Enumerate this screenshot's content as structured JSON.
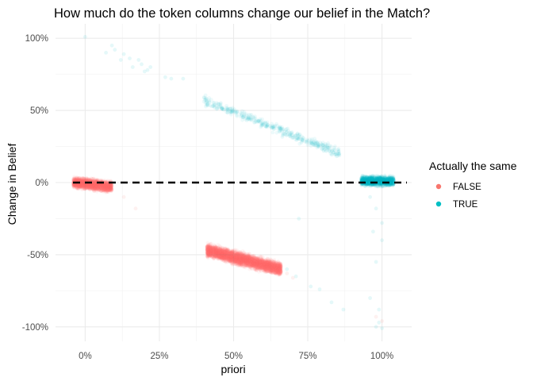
{
  "chart_data": {
    "type": "scatter",
    "title": "How much do the token columns change our belief in the Match?",
    "xlabel": "priori",
    "ylabel": "Change in Belief",
    "xlim": [
      -0.1,
      1.1
    ],
    "ylim": [
      -1.1,
      1.1
    ],
    "x_ticks": [
      0,
      0.25,
      0.5,
      0.75,
      1.0
    ],
    "x_tick_labels": [
      "0%",
      "25%",
      "50%",
      "75%",
      "100%"
    ],
    "y_ticks": [
      -1.0,
      -0.5,
      0,
      0.5,
      1.0
    ],
    "y_tick_labels": [
      "-100%",
      "-50%",
      "0%",
      "50%",
      "100%"
    ],
    "grid": true,
    "reference_line": {
      "y": 0,
      "style": "dashed",
      "color": "#000000"
    },
    "legend": {
      "title": "Actually the same",
      "position": "right",
      "entries": [
        {
          "label": "FALSE",
          "color": "#F8766D"
        },
        {
          "label": "TRUE",
          "color": "#00BFC4"
        }
      ]
    },
    "series": [
      {
        "name": "FALSE",
        "color": "#F8766D",
        "clusters": [
          {
            "x_range": [
              -0.04,
              0.09
            ],
            "y_at_start": 0.0,
            "y_at_end": -0.03,
            "y_spread": 0.05,
            "n": 2200
          },
          {
            "x_range": [
              0.41,
              0.66
            ],
            "y_at_start": -0.47,
            "y_at_end": -0.6,
            "y_spread": 0.06,
            "n": 4500
          }
        ],
        "outliers": [
          [
            0.17,
            -0.18
          ],
          [
            0.13,
            -0.1
          ],
          [
            0.68,
            -0.63
          ],
          [
            0.7,
            -0.66
          ],
          [
            0.98,
            -0.93
          ],
          [
            1.0,
            -0.96
          ]
        ]
      },
      {
        "name": "TRUE",
        "color": "#00BFC4",
        "clusters": [
          {
            "x_range": [
              0.93,
              1.04
            ],
            "y_at_start": 0.01,
            "y_at_end": 0.01,
            "y_spread": 0.045,
            "n": 1500
          },
          {
            "x_range": [
              0.4,
              0.86
            ],
            "y_at_start": 0.57,
            "y_at_end": 0.2,
            "y_spread": 0.045,
            "n": 380
          }
        ],
        "outliers": [
          [
            0.0,
            1.01
          ],
          [
            0.09,
            0.95
          ],
          [
            0.1,
            0.92
          ],
          [
            0.07,
            0.9
          ],
          [
            0.13,
            0.89
          ],
          [
            0.12,
            0.85
          ],
          [
            0.15,
            0.86
          ],
          [
            0.18,
            0.85
          ],
          [
            0.16,
            0.8
          ],
          [
            0.19,
            0.82
          ],
          [
            0.2,
            0.77
          ],
          [
            0.21,
            0.78
          ],
          [
            0.22,
            0.8
          ],
          [
            0.27,
            0.73
          ],
          [
            0.29,
            0.72
          ],
          [
            0.33,
            0.72
          ],
          [
            0.72,
            -0.25
          ],
          [
            0.68,
            -0.6
          ],
          [
            0.71,
            -0.65
          ],
          [
            0.76,
            -0.72
          ],
          [
            0.79,
            -0.74
          ],
          [
            0.83,
            -0.83
          ],
          [
            0.87,
            -0.88
          ],
          [
            0.96,
            -0.1
          ],
          [
            0.98,
            -0.18
          ],
          [
            1.0,
            -0.28
          ],
          [
            0.97,
            -0.34
          ],
          [
            1.0,
            -0.4
          ],
          [
            0.98,
            -0.55
          ],
          [
            0.96,
            -0.8
          ],
          [
            0.99,
            -0.88
          ],
          [
            0.99,
            -0.97
          ],
          [
            0.98,
            -1.0
          ],
          [
            1.0,
            -1.01
          ]
        ]
      }
    ]
  }
}
